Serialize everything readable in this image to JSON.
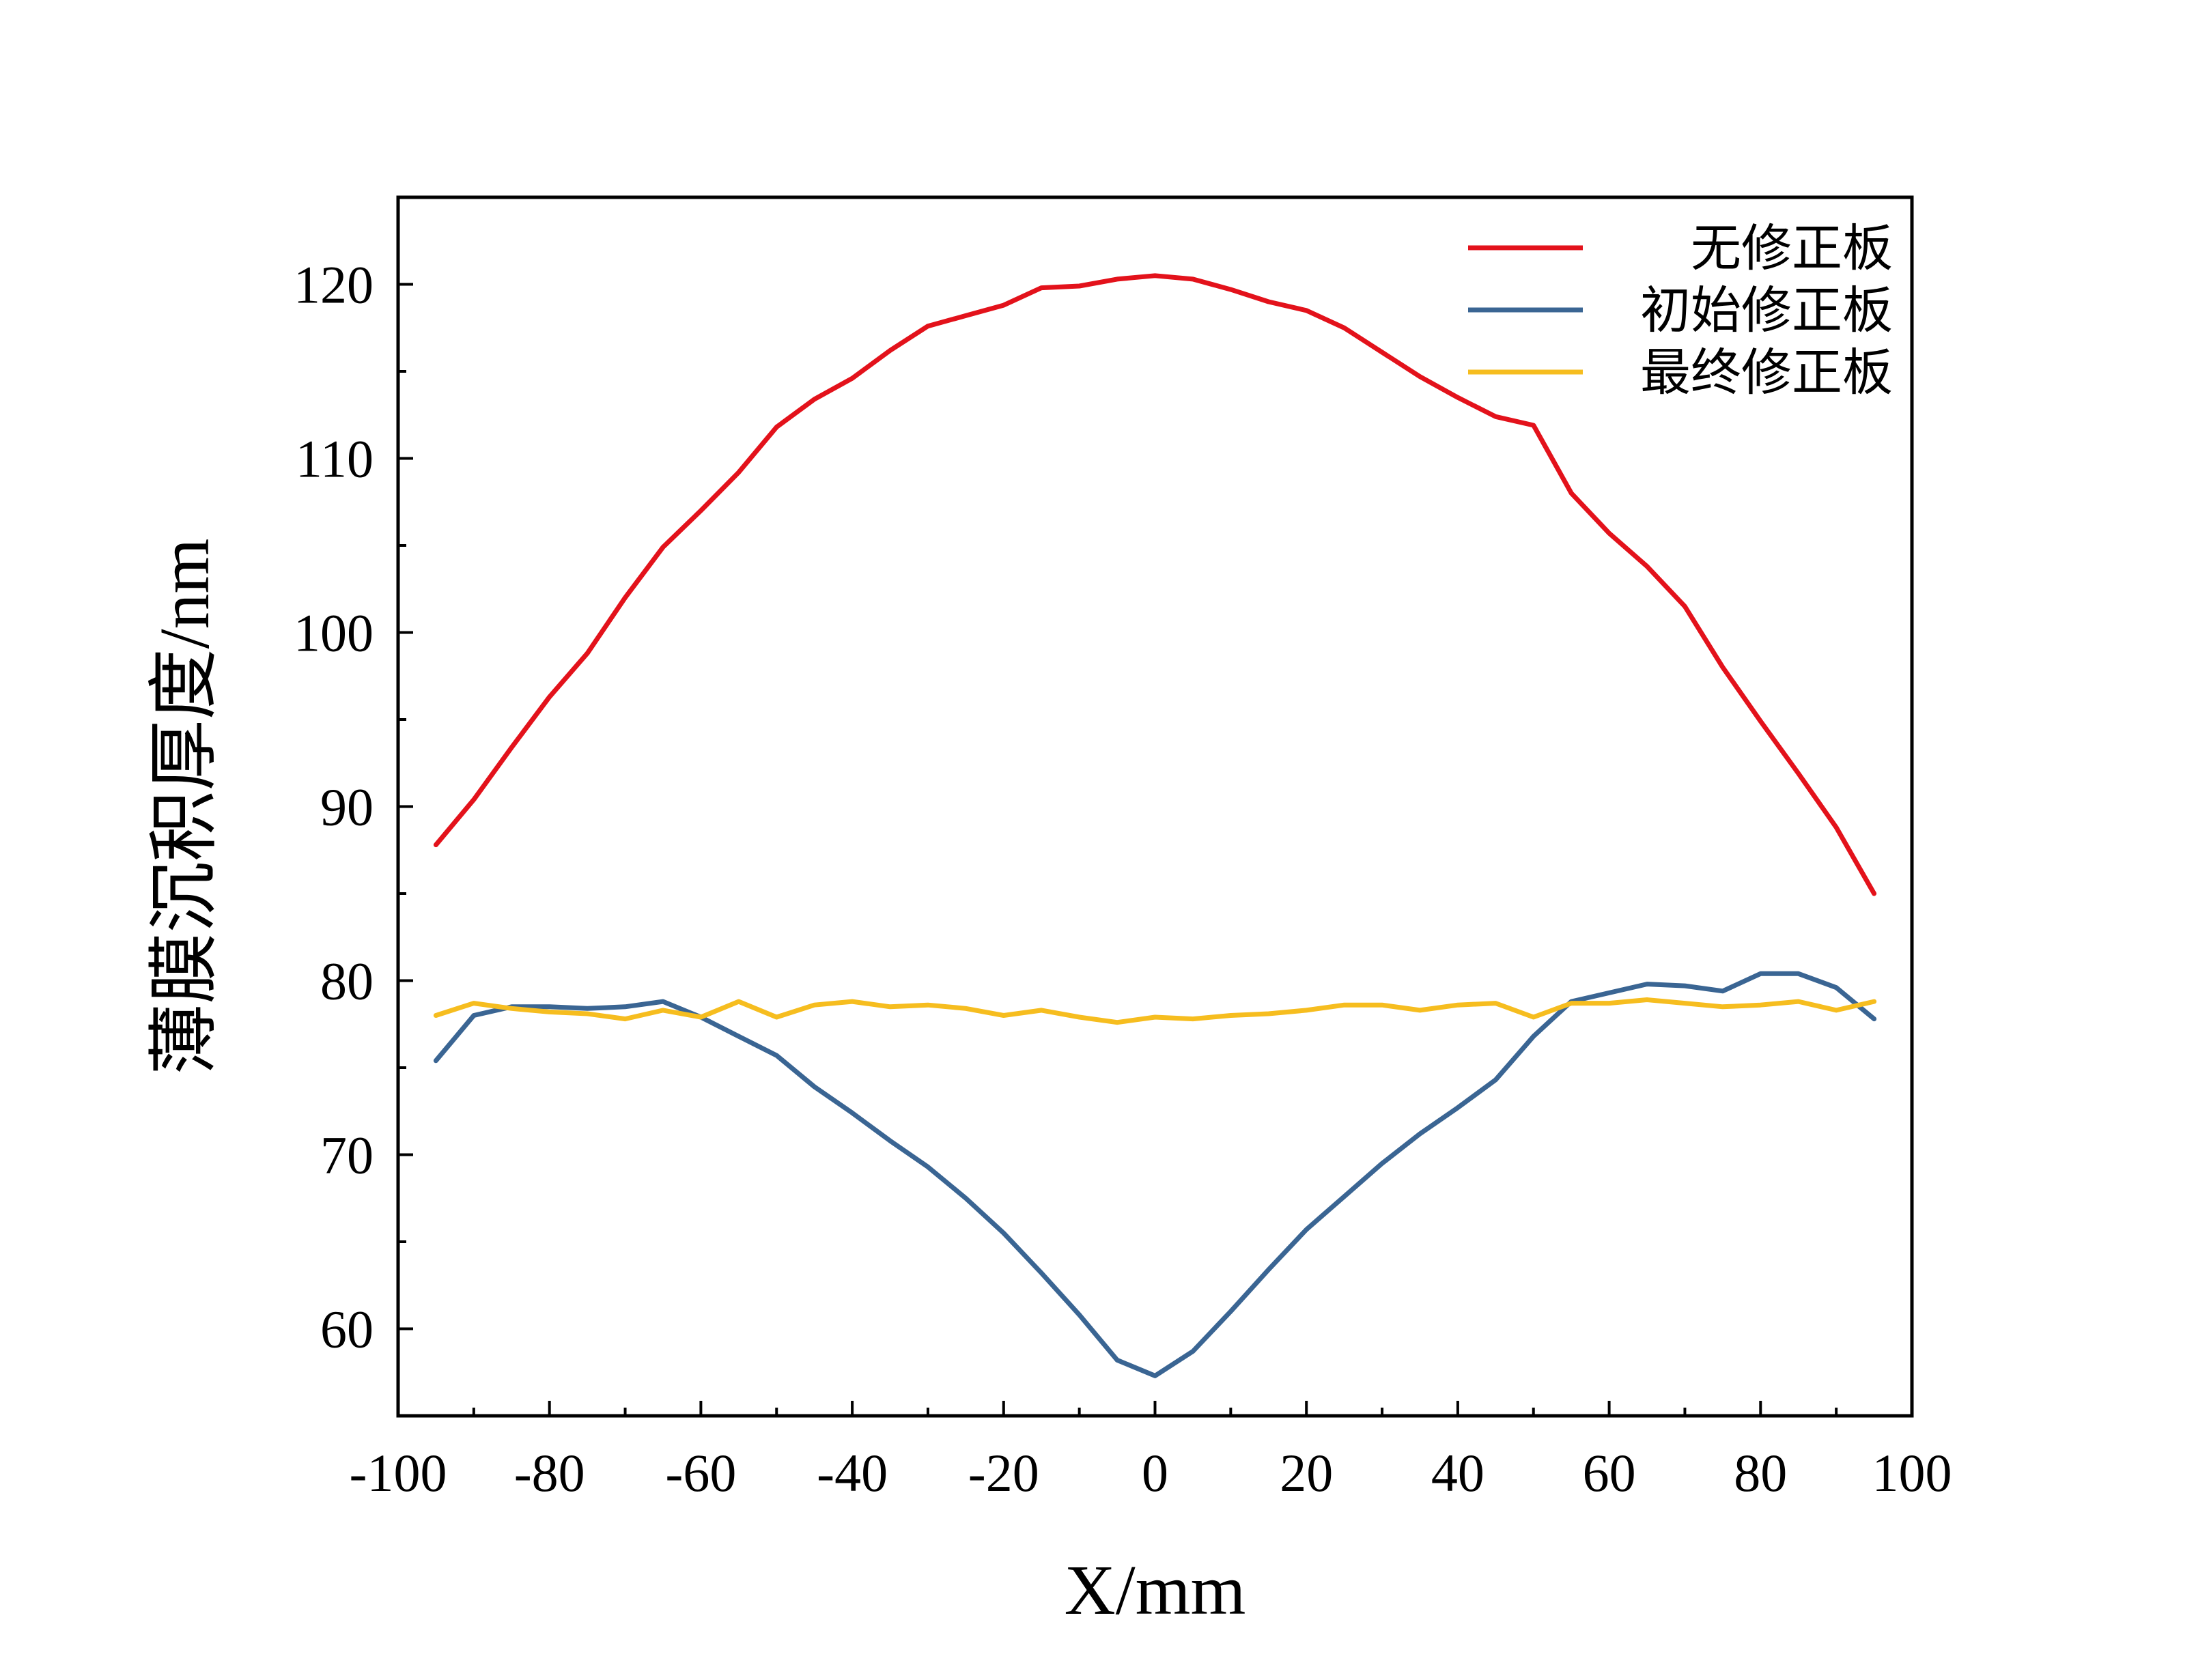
{
  "chart_data": {
    "type": "line",
    "title": "",
    "xlabel": "X/mm",
    "ylabel": "薄膜沉积厚度/nm",
    "xlim": [
      -100,
      100
    ],
    "ylim": [
      55,
      125
    ],
    "xticks": [
      -100,
      -80,
      -60,
      -40,
      -20,
      0,
      20,
      40,
      60,
      80,
      100
    ],
    "yticks": [
      60,
      70,
      80,
      90,
      100,
      110,
      120
    ],
    "grid": false,
    "legend_position": "top-right",
    "x": [
      -95,
      -90,
      -85,
      -80,
      -75,
      -70,
      -65,
      -60,
      -55,
      -50,
      -45,
      -40,
      -35,
      -30,
      -25,
      -20,
      -15,
      -10,
      -5,
      0,
      5,
      10,
      15,
      20,
      25,
      30,
      35,
      40,
      45,
      50,
      55,
      60,
      65,
      70,
      75,
      80,
      85,
      90,
      95
    ],
    "series": [
      {
        "name": "无修正板",
        "color": "#e3121b",
        "values": [
          87.8,
          90.4,
          93.4,
          96.3,
          98.8,
          102.0,
          104.9,
          107.0,
          109.2,
          111.8,
          113.4,
          114.6,
          116.2,
          117.6,
          118.2,
          118.8,
          119.8,
          119.9,
          120.3,
          120.5,
          120.3,
          119.7,
          119.0,
          118.5,
          117.5,
          116.1,
          114.7,
          113.5,
          112.4,
          111.9,
          108.0,
          105.7,
          103.8,
          101.5,
          98.0,
          94.9,
          91.9,
          88.8,
          85.0
        ]
      },
      {
        "name": "初始修正板",
        "color": "#3a6593",
        "values": [
          75.4,
          78.0,
          78.5,
          78.5,
          78.4,
          78.5,
          78.8,
          77.9,
          76.8,
          75.7,
          73.9,
          72.4,
          70.8,
          69.3,
          67.5,
          65.5,
          63.2,
          60.8,
          58.2,
          57.3,
          58.7,
          61.0,
          63.4,
          65.7,
          67.6,
          69.5,
          71.2,
          72.7,
          74.3,
          76.8,
          78.8,
          79.3,
          79.8,
          79.7,
          79.4,
          80.4,
          80.4,
          79.6,
          77.8
        ]
      },
      {
        "name": "最终修正板",
        "color": "#f6bd1f",
        "values": [
          78.0,
          78.7,
          78.4,
          78.2,
          78.1,
          77.8,
          78.3,
          77.9,
          78.8,
          77.9,
          78.6,
          78.8,
          78.5,
          78.6,
          78.4,
          78.0,
          78.3,
          77.9,
          77.6,
          77.9,
          77.8,
          78.0,
          78.1,
          78.3,
          78.6,
          78.6,
          78.3,
          78.6,
          78.7,
          77.9,
          78.7,
          78.7,
          78.9,
          78.7,
          78.5,
          78.6,
          78.8,
          78.3,
          78.8
        ]
      }
    ]
  }
}
